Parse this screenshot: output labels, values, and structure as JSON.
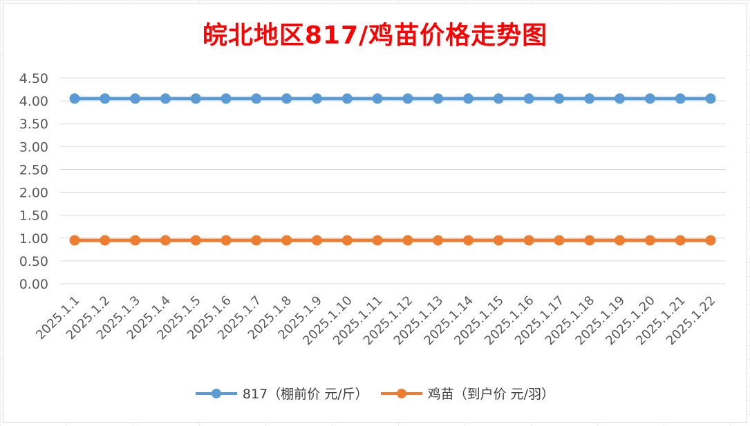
{
  "chart_data": {
    "type": "line",
    "title": "皖北地区817/鸡苗价格走势图",
    "xlabel": "",
    "ylabel": "",
    "ylim": [
      0,
      4.5
    ],
    "yticks": [
      "0.00",
      "0.50",
      "1.00",
      "1.50",
      "2.00",
      "2.50",
      "3.00",
      "3.50",
      "4.00",
      "4.50"
    ],
    "grid": true,
    "legend_position": "bottom",
    "categories": [
      "2025.1.1",
      "2025.1.2",
      "2025.1.3",
      "2025.1.4",
      "2025.1.5",
      "2025.1.6",
      "2025.1.7",
      "2025.1.8",
      "2025.1.9",
      "2025.1.10",
      "2025.1.11",
      "2025.1.12",
      "2025.1.13",
      "2025.1.14",
      "2025.1.15",
      "2025.1.16",
      "2025.1.17",
      "2025.1.18",
      "2025.1.19",
      "2025.1.20",
      "2025.1.21",
      "2025.1.22"
    ],
    "series": [
      {
        "name": "817（棚前价 元/斤）",
        "color": "#5b9bd5",
        "values": [
          4.05,
          4.05,
          4.05,
          4.05,
          4.05,
          4.05,
          4.05,
          4.05,
          4.05,
          4.05,
          4.05,
          4.05,
          4.05,
          4.05,
          4.05,
          4.05,
          4.05,
          4.05,
          4.05,
          4.05,
          4.05,
          4.05
        ]
      },
      {
        "name": "鸡苗（到户价 元/羽）",
        "color": "#ed7d31",
        "values": [
          0.95,
          0.95,
          0.95,
          0.95,
          0.95,
          0.95,
          0.95,
          0.95,
          0.95,
          0.95,
          0.95,
          0.95,
          0.95,
          0.95,
          0.95,
          0.95,
          0.95,
          0.95,
          0.95,
          0.95,
          0.95,
          0.95
        ]
      }
    ]
  },
  "colors": {
    "title": "#ff0000",
    "gridline": "#d9d9d9",
    "axis_text": "#595959"
  }
}
